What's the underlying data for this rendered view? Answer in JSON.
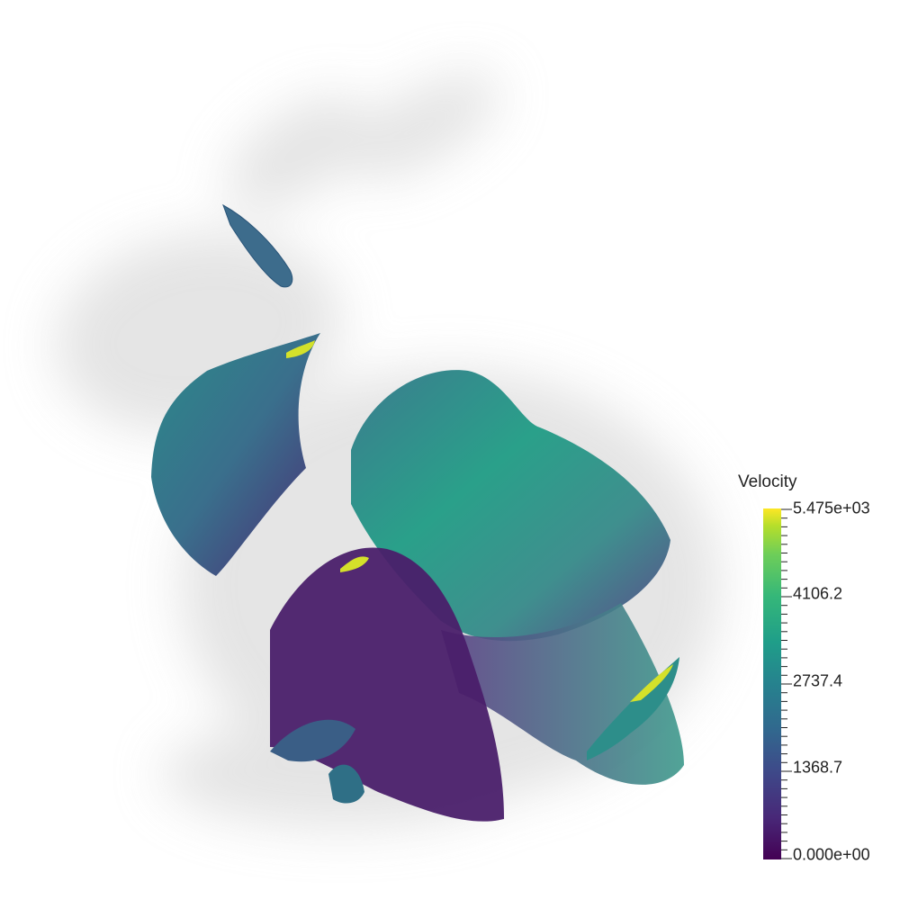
{
  "legend": {
    "title": "Velocity",
    "labels": {
      "max": "5.475e+03",
      "t3": "4106.2",
      "t2": "2737.4",
      "t1": "1368.7",
      "min": "0.000e+00"
    }
  },
  "colors": {
    "background": "#ffffff",
    "low": "#440154",
    "mid": "#21918c",
    "high": "#fde725",
    "shadow": "#c8c8c8"
  }
}
